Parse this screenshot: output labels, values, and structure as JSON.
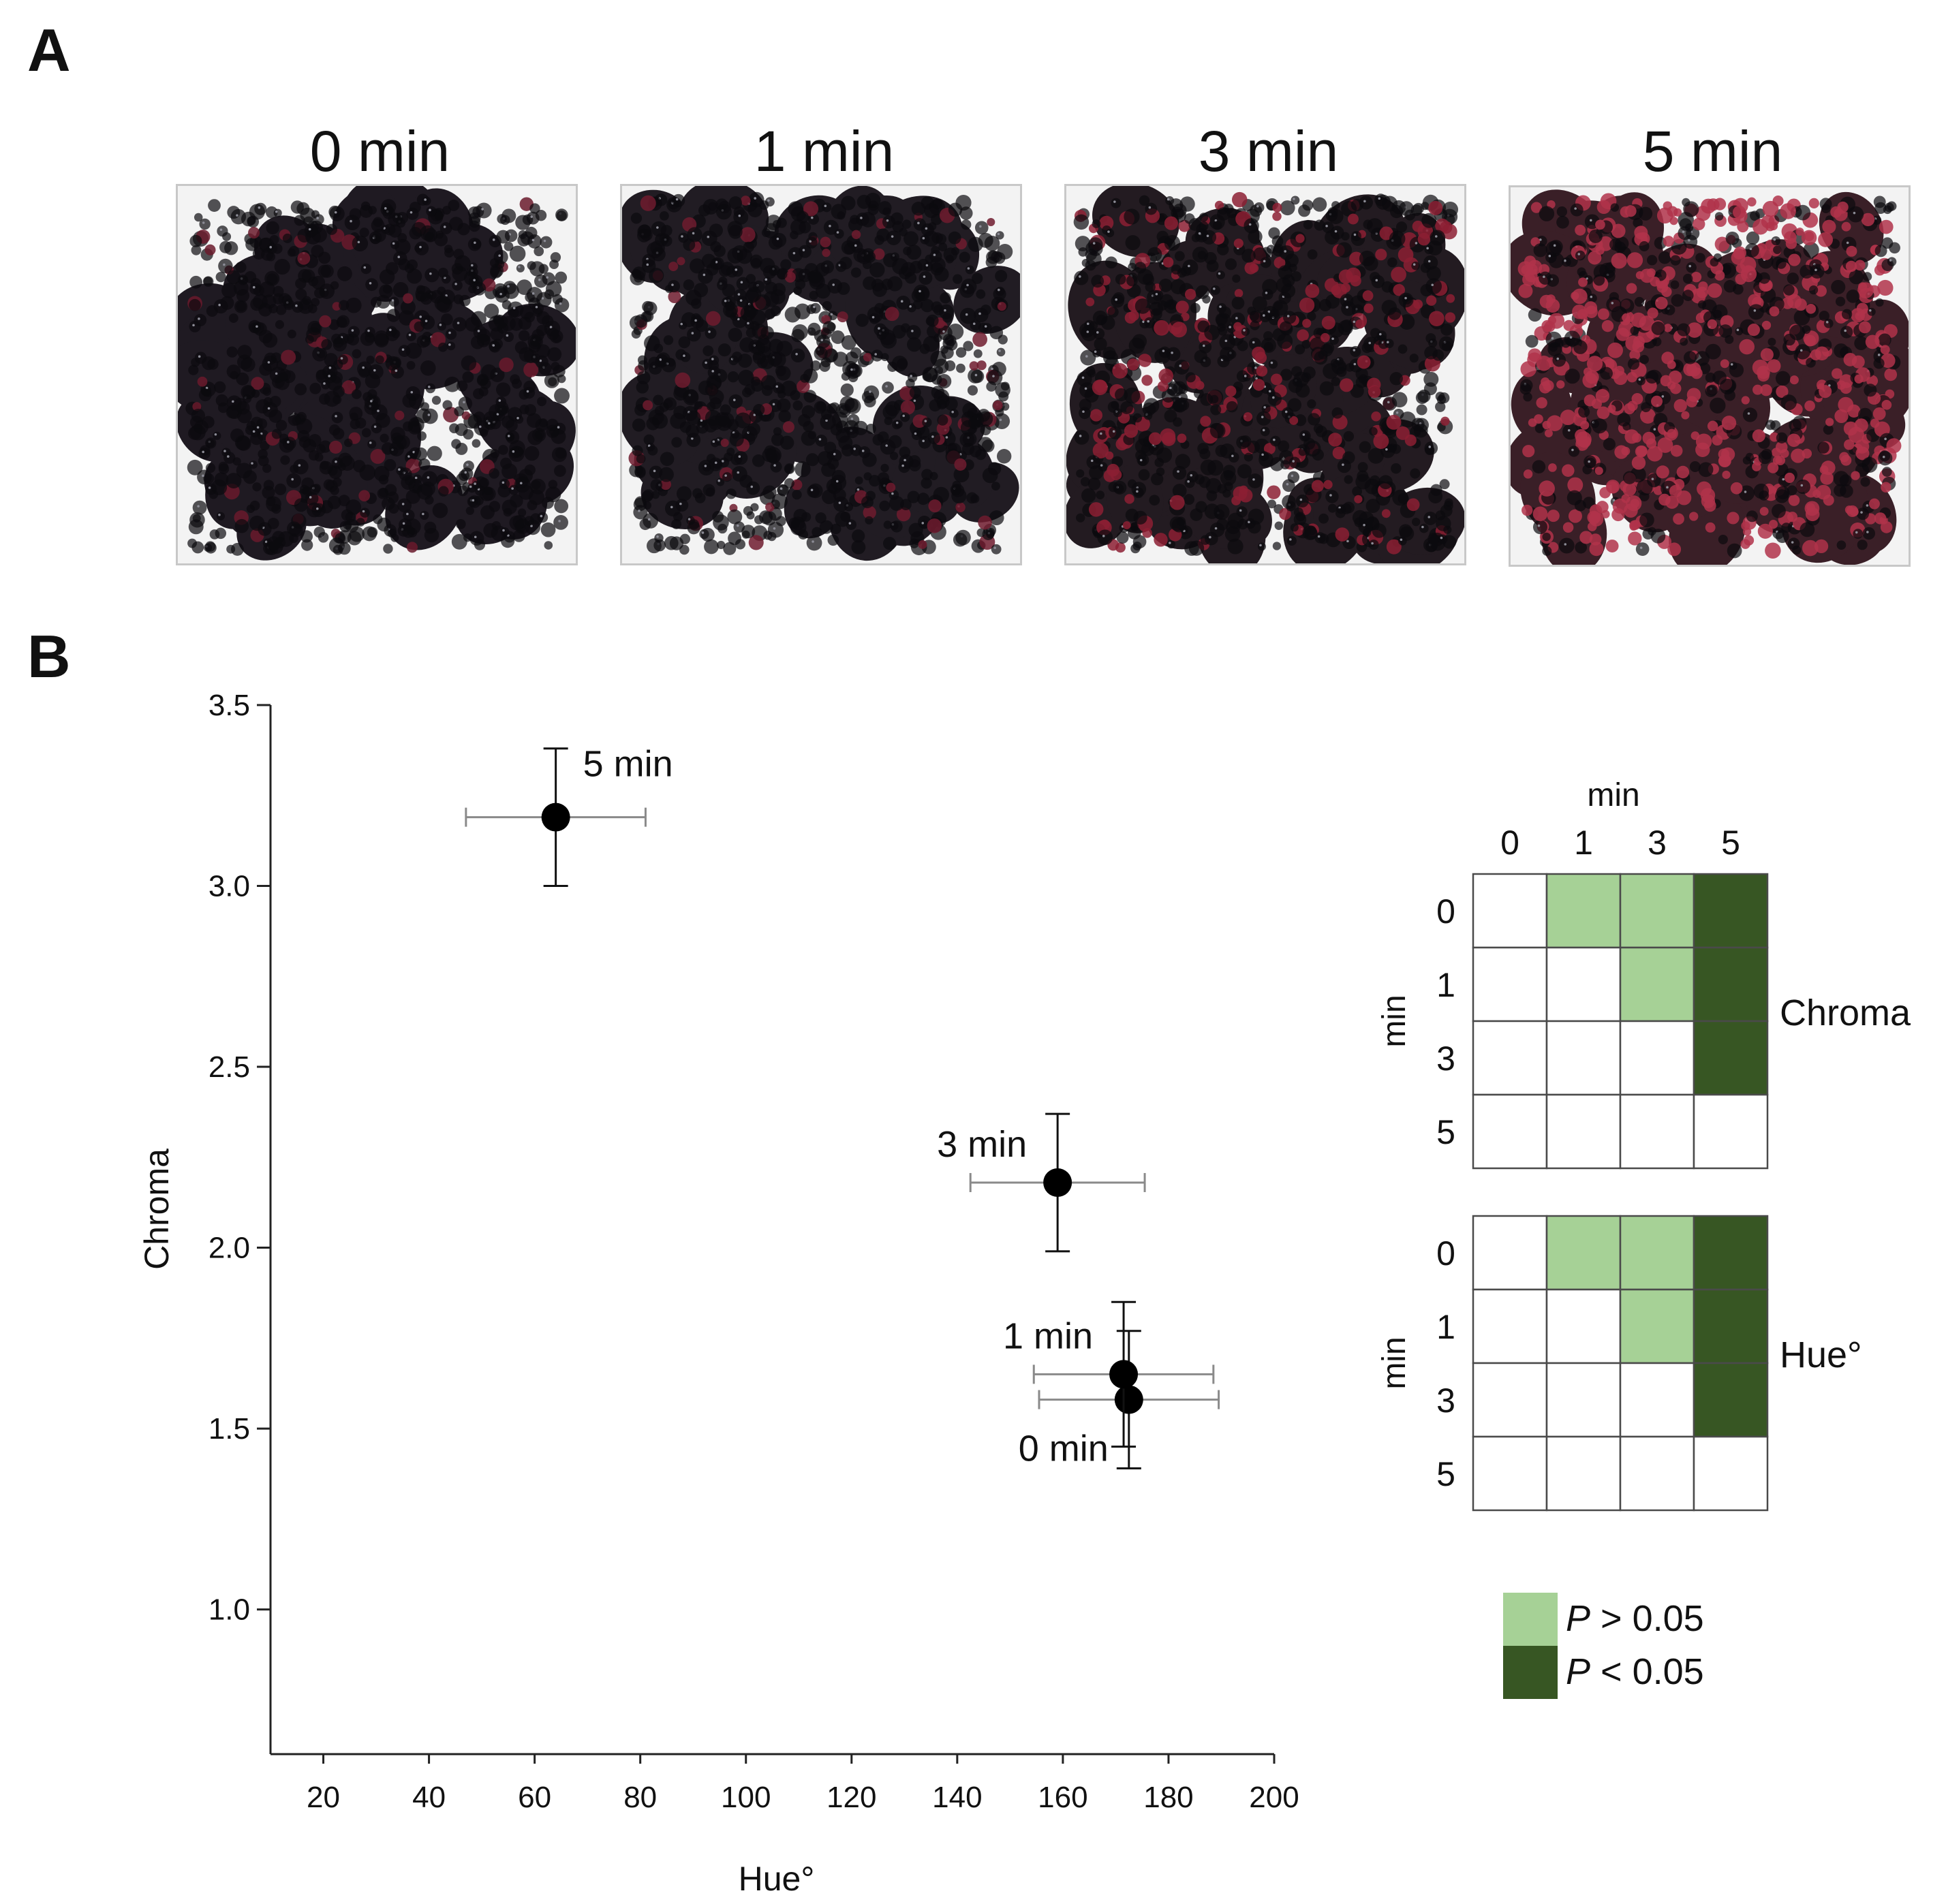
{
  "panel_a": {
    "label": "A",
    "photos": [
      {
        "title": "0 min",
        "berry_hue": "#1f1a22",
        "red_tint": "#6a1a2c",
        "red_fraction": 0.06
      },
      {
        "title": "1 min",
        "berry_hue": "#211c23",
        "red_tint": "#6e1b2e",
        "red_fraction": 0.1
      },
      {
        "title": "3 min",
        "berry_hue": "#231b21",
        "red_tint": "#8c1f33",
        "red_fraction": 0.22
      },
      {
        "title": "5 min",
        "berry_hue": "#3a1f27",
        "red_tint": "#b0334a",
        "red_fraction": 0.55
      }
    ]
  },
  "panel_b": {
    "label": "B",
    "matrix": {
      "column_header": "min",
      "row_header": "min",
      "levels": [
        "0",
        "1",
        "3",
        "5"
      ],
      "blocks": [
        {
          "name": "Chroma",
          "cells": [
            [
              "",
              "ns",
              "ns",
              "sig"
            ],
            [
              "",
              "",
              "ns",
              "sig"
            ],
            [
              "",
              "",
              "",
              "sig"
            ],
            [
              "",
              "",
              "",
              ""
            ]
          ]
        },
        {
          "name": "Hue°",
          "cells": [
            [
              "",
              "ns",
              "ns",
              "sig"
            ],
            [
              "",
              "",
              "ns",
              "sig"
            ],
            [
              "",
              "",
              "",
              "sig"
            ],
            [
              "",
              "",
              "",
              ""
            ]
          ]
        }
      ]
    },
    "legend": [
      {
        "key": "ns",
        "italic": "P",
        "text": " > 0.05",
        "color": "#a6d196"
      },
      {
        "key": "sig",
        "italic": "P",
        "text": " < 0.05",
        "color": "#375623"
      }
    ]
  },
  "chart_data": {
    "type": "scatter",
    "xlabel": "Hue°",
    "ylabel": "Chroma",
    "xlim": [
      10,
      200
    ],
    "ylim": [
      0.6,
      3.5
    ],
    "xticks": [
      20,
      40,
      60,
      80,
      100,
      120,
      140,
      160,
      180,
      200
    ],
    "yticks": [
      1.0,
      1.5,
      2.0,
      2.5,
      3.0,
      3.5
    ],
    "grid": false,
    "points": [
      {
        "label": "0 min",
        "x": 172.5,
        "y": 1.58,
        "x_err": 17,
        "y_err": 0.19,
        "label_pos": "below-left"
      },
      {
        "label": "1 min",
        "x": 171.5,
        "y": 1.65,
        "x_err": 17,
        "y_err": 0.2,
        "label_pos": "above-left"
      },
      {
        "label": "3 min",
        "x": 159,
        "y": 2.18,
        "x_err": 16.5,
        "y_err": 0.19,
        "label_pos": "above-left"
      },
      {
        "label": "5 min",
        "x": 64,
        "y": 3.19,
        "x_err": 17,
        "y_err": 0.19,
        "label_pos": "above-right"
      }
    ]
  }
}
